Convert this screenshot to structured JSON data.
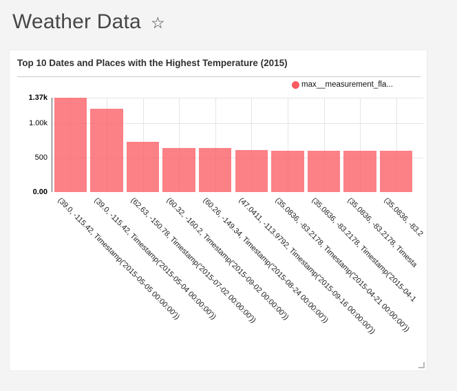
{
  "page": {
    "title": "Weather Data",
    "background_color": "#f4f4f4"
  },
  "card": {
    "title": "Top 10 Dates and Places with the Highest Temperature (2015)",
    "legend": {
      "label": "max__measurement_fla...",
      "color": "#fa5a60"
    }
  },
  "chart_data": {
    "type": "bar",
    "title": "Top 10 Dates and Places with the Highest Temperature (2015)",
    "series_name": "max__measurement_fla...",
    "bar_color": "#fa5a60",
    "categories": [
      "(39.0, -115.42, Timestamp('2015-05-05 00:00:00'))",
      "(39.0, -115.42, Timestamp('2015-05-04 00:00:00'))",
      "(62.63, -150.78, Timestamp('2015-07-02 00:00:00'))",
      "(60.32, -160.2, Timestamp('2015-09-02 00:00:00'))",
      "(60.26, -149.34, Timestamp('2015-08-24 00:00:00'))",
      "(47.0411, -113.9792, Timestamp('2015-09-16 00:00:00'))",
      "(35.0836, -83.2178, Timestamp('2015-04-21 00:00:00'))",
      "(35.0836, -83.2178, Timestamp('2015-04-1",
      "(35.0836, -83.2178, Timesta",
      "(35.0836, -83.2"
    ],
    "values": [
      1370,
      1210,
      730,
      640,
      633,
      608,
      596,
      595,
      595,
      594
    ],
    "ylim": [
      0,
      1370
    ],
    "yticks": [
      {
        "value": 0,
        "label": "0.00",
        "bold": true
      },
      {
        "value": 500,
        "label": "500",
        "bold": false
      },
      {
        "value": 1000,
        "label": "1.00k",
        "bold": false
      },
      {
        "value": 1370,
        "label": "1.37k",
        "bold": true
      }
    ],
    "grid": true,
    "legend_position": "top-right",
    "x_label_rotation": 45
  }
}
